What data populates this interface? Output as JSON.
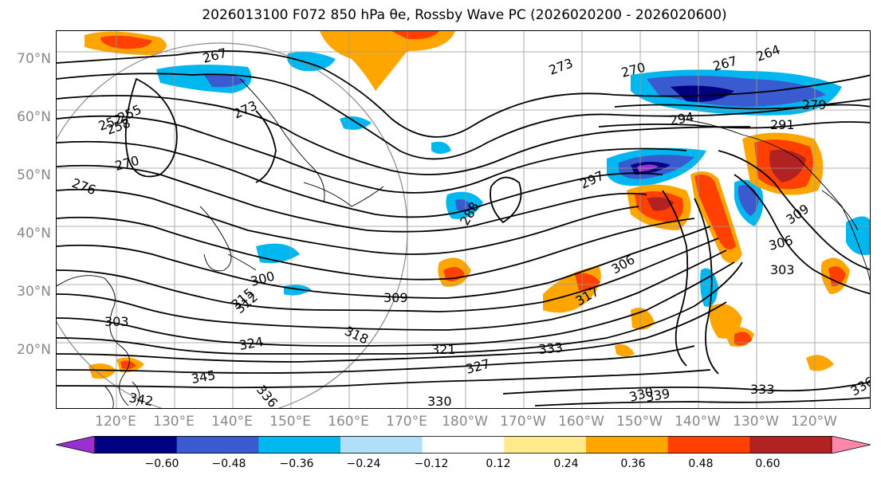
{
  "title": "2026013100 F072 850 hPa θe, Rossby Wave PC (2026020200 - 2026020600)",
  "lat_labels": [
    "70°N",
    "60°N",
    "50°N",
    "40°N",
    "30°N",
    "20°N"
  ],
  "lon_labels": [
    "120°E",
    "130°E",
    "140°E",
    "150°E",
    "160°E",
    "170°E",
    "180°W",
    "170°W",
    "160°W",
    "150°W",
    "140°W",
    "130°W",
    "120°W"
  ],
  "colorbar": {
    "ticks": [
      "−0.60",
      "−0.48",
      "−0.36",
      "−0.24",
      "−0.12",
      "0.12",
      "0.24",
      "0.36",
      "0.48",
      "0.60"
    ],
    "colors": [
      "#9b30d0",
      "#000080",
      "#3a5bd0",
      "#00b7f0",
      "#b0e0f8",
      "#ffffff",
      "#ffea8c",
      "#ffa500",
      "#ff4000",
      "#b22222",
      "#ff88aa"
    ]
  },
  "contour_labels": [
    {
      "text": "267"
    },
    {
      "text": "264"
    },
    {
      "text": "270"
    },
    {
      "text": "267"
    },
    {
      "text": "273"
    },
    {
      "text": "279"
    },
    {
      "text": "291"
    },
    {
      "text": "294"
    },
    {
      "text": "297"
    },
    {
      "text": "276"
    },
    {
      "text": "270"
    },
    {
      "text": "258"
    },
    {
      "text": "255"
    },
    {
      "text": "252"
    },
    {
      "text": "273"
    },
    {
      "text": "288"
    },
    {
      "text": "300"
    },
    {
      "text": "303"
    },
    {
      "text": "306"
    },
    {
      "text": "309"
    },
    {
      "text": "312"
    },
    {
      "text": "315"
    },
    {
      "text": "317"
    },
    {
      "text": "318"
    },
    {
      "text": "321"
    },
    {
      "text": "324"
    },
    {
      "text": "327"
    },
    {
      "text": "330"
    },
    {
      "text": "333"
    },
    {
      "text": "336"
    },
    {
      "text": "339"
    },
    {
      "text": "342"
    },
    {
      "text": "345"
    },
    {
      "text": "306"
    },
    {
      "text": "303"
    },
    {
      "text": "309"
    },
    {
      "text": "333"
    },
    {
      "text": "330"
    },
    {
      "text": "336"
    }
  ]
}
